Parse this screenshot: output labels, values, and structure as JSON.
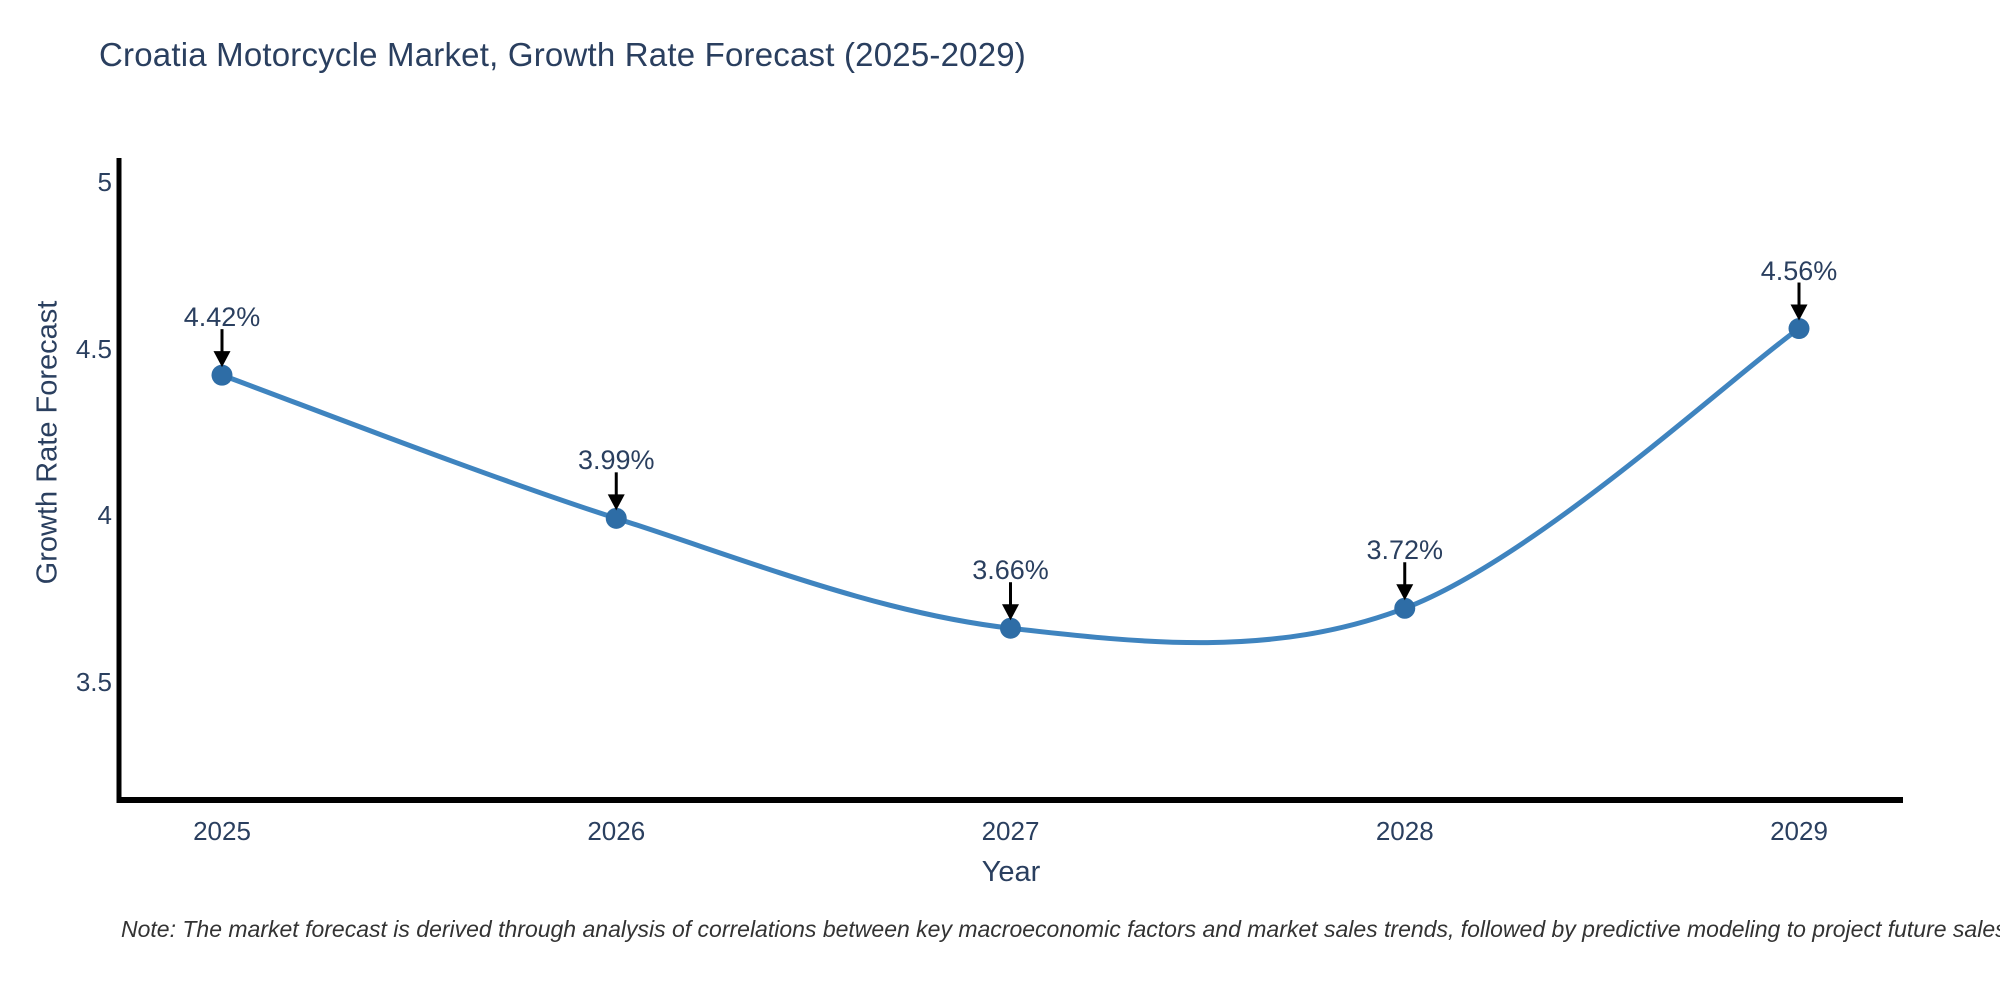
{
  "title": "Croatia Motorcycle Market, Growth Rate Forecast (2025-2029)",
  "note": "Note: The market forecast is derived through analysis of correlations between key macroeconomic factors and market sales trends, followed by predictive modeling to project future sales",
  "y_axis": {
    "title": "Growth Rate Forecast",
    "ticks": [
      {
        "label": "5",
        "value": 5.0
      },
      {
        "label": "4.5",
        "value": 4.5
      },
      {
        "label": "4",
        "value": 4.0
      },
      {
        "label": "3.5",
        "value": 3.5
      }
    ]
  },
  "x_axis": {
    "title": "Year",
    "ticks": [
      "2025",
      "2026",
      "2027",
      "2028",
      "2029"
    ]
  },
  "chart_data": {
    "type": "line",
    "line_shape": "spline",
    "x": [
      2025,
      2026,
      2027,
      2028,
      2029
    ],
    "values": [
      4.42,
      3.99,
      3.66,
      3.72,
      4.56
    ],
    "point_labels": [
      "4.42%",
      "3.99%",
      "3.66%",
      "3.72%",
      "4.56%"
    ],
    "title": "Croatia Motorcycle Market, Growth Rate Forecast (2025-2029)",
    "xlabel": "Year",
    "ylabel": "Growth Rate Forecast",
    "ylim": [
      3.14,
      5.08
    ],
    "grid": false,
    "legend": false,
    "annotations": "black down-arrows from each value label to its marker",
    "colors": {
      "line": "#3f84bf",
      "marker": "#2e6da6",
      "axis": "#000000",
      "text": "#2a3f5f",
      "arrow": "#000000",
      "background": "#ffffff"
    }
  }
}
